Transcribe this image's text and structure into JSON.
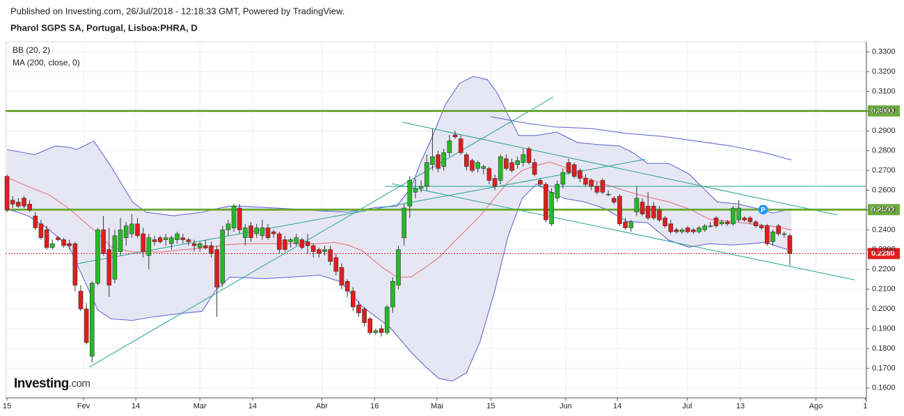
{
  "chart_data": {
    "type": "candlestick",
    "published": "Published on Investing.com, 26/Jul/2018 - 12:18:33 GMT, Powered by TradingView.",
    "title": "Pharol SGPS SA, Portugal, Lisboa:PHRA, D",
    "logo": {
      "name": "Investing",
      "suffix": ".com"
    },
    "ylim": [
      0.155,
      0.3351
    ],
    "yticks": [
      {
        "value": 0.16,
        "label": "0.1600"
      },
      {
        "value": 0.17,
        "label": "0.1700"
      },
      {
        "value": 0.18,
        "label": "0.1800"
      },
      {
        "value": 0.19,
        "label": "0.1900"
      },
      {
        "value": 0.2,
        "label": "0.2000"
      },
      {
        "value": 0.21,
        "label": "0.2100"
      },
      {
        "value": 0.22,
        "label": "0.2200"
      },
      {
        "value": 0.23,
        "label": "0.2300"
      },
      {
        "value": 0.24,
        "label": "0.2400"
      },
      {
        "value": 0.25,
        "label": "0.2500"
      },
      {
        "value": 0.26,
        "label": "0.2600"
      },
      {
        "value": 0.27,
        "label": "0.2700"
      },
      {
        "value": 0.28,
        "label": "0.2800"
      },
      {
        "value": 0.29,
        "label": "0.2900"
      },
      {
        "value": 0.3,
        "label": "0.3000"
      },
      {
        "value": 0.31,
        "label": "0.3100"
      },
      {
        "value": 0.32,
        "label": "0.3200"
      },
      {
        "value": 0.33,
        "label": "0.3300"
      }
    ],
    "xlim": [
      -0.25,
      151.5
    ],
    "xticks": [
      {
        "value": 0,
        "label": "15"
      },
      {
        "value": 13.5,
        "label": "Fev"
      },
      {
        "value": 22.7,
        "label": "14"
      },
      {
        "value": 34,
        "label": "Mar"
      },
      {
        "value": 43.3,
        "label": "14"
      },
      {
        "value": 55.5,
        "label": "Abr"
      },
      {
        "value": 64.8,
        "label": "16"
      },
      {
        "value": 75.8,
        "label": "Mai"
      },
      {
        "value": 85.3,
        "label": "15"
      },
      {
        "value": 98.5,
        "label": "Jun"
      },
      {
        "value": 107.6,
        "label": "14"
      },
      {
        "value": 119.9,
        "label": "Jul"
      },
      {
        "value": 129.3,
        "label": "13"
      },
      {
        "value": 142.6,
        "label": "Ago"
      },
      {
        "value": 151.3,
        "label": "1"
      }
    ],
    "grid": true,
    "up_color": "#27b927",
    "down_color": "#e11d1d",
    "candles": [
      [
        0.267,
        0.268,
        0.249,
        0.25
      ],
      [
        0.255,
        0.257,
        0.251,
        0.253
      ],
      [
        0.254,
        0.256,
        0.251,
        0.252
      ],
      [
        0.256,
        0.257,
        0.251,
        0.252
      ],
      [
        0.253,
        0.255,
        0.249,
        0.25
      ],
      [
        0.247,
        0.249,
        0.24,
        0.241
      ],
      [
        0.243,
        0.245,
        0.235,
        0.236
      ],
      [
        0.24,
        0.242,
        0.23,
        0.231
      ],
      [
        0.231,
        0.235,
        0.23,
        0.233
      ],
      [
        0.236,
        0.237,
        0.234,
        0.235
      ],
      [
        0.235,
        0.236,
        0.231,
        0.232
      ],
      [
        0.233,
        0.235,
        0.23,
        0.232
      ],
      [
        0.233,
        0.234,
        0.209,
        0.212
      ],
      [
        0.209,
        0.212,
        0.199,
        0.2
      ],
      [
        0.2,
        0.203,
        0.182,
        0.183
      ],
      [
        0.176,
        0.214,
        0.173,
        0.213
      ],
      [
        0.213,
        0.241,
        0.212,
        0.24
      ],
      [
        0.24,
        0.247,
        0.227,
        0.228
      ],
      [
        0.23,
        0.241,
        0.206,
        0.212
      ],
      [
        0.215,
        0.24,
        0.213,
        0.237
      ],
      [
        0.229,
        0.246,
        0.227,
        0.24
      ],
      [
        0.236,
        0.244,
        0.232,
        0.242
      ],
      [
        0.238,
        0.248,
        0.236,
        0.243
      ],
      [
        0.243,
        0.246,
        0.236,
        0.237
      ],
      [
        0.238,
        0.241,
        0.226,
        0.229
      ],
      [
        0.227,
        0.238,
        0.22,
        0.236
      ],
      [
        0.235,
        0.237,
        0.232,
        0.234
      ],
      [
        0.236,
        0.237,
        0.233,
        0.234
      ],
      [
        0.235,
        0.238,
        0.232,
        0.236
      ],
      [
        0.233,
        0.237,
        0.23,
        0.236
      ],
      [
        0.235,
        0.239,
        0.233,
        0.238
      ],
      [
        0.236,
        0.238,
        0.233,
        0.235
      ],
      [
        0.235,
        0.236,
        0.232,
        0.234
      ],
      [
        0.233,
        0.235,
        0.229,
        0.232
      ],
      [
        0.231,
        0.234,
        0.229,
        0.233
      ],
      [
        0.232,
        0.235,
        0.23,
        0.231
      ],
      [
        0.232,
        0.234,
        0.226,
        0.228
      ],
      [
        0.23,
        0.232,
        0.196,
        0.211
      ],
      [
        0.213,
        0.242,
        0.211,
        0.24
      ],
      [
        0.24,
        0.245,
        0.237,
        0.243
      ],
      [
        0.241,
        0.253,
        0.239,
        0.252
      ],
      [
        0.251,
        0.253,
        0.238,
        0.24
      ],
      [
        0.236,
        0.243,
        0.232,
        0.241
      ],
      [
        0.242,
        0.244,
        0.234,
        0.236
      ],
      [
        0.238,
        0.243,
        0.236,
        0.241
      ],
      [
        0.237,
        0.245,
        0.235,
        0.241
      ],
      [
        0.241,
        0.243,
        0.235,
        0.236
      ],
      [
        0.239,
        0.24,
        0.236,
        0.238
      ],
      [
        0.238,
        0.239,
        0.228,
        0.23
      ],
      [
        0.235,
        0.237,
        0.229,
        0.23
      ],
      [
        0.234,
        0.236,
        0.231,
        0.235
      ],
      [
        0.233,
        0.238,
        0.232,
        0.236
      ],
      [
        0.235,
        0.236,
        0.23,
        0.231
      ],
      [
        0.234,
        0.238,
        0.228,
        0.232
      ],
      [
        0.232,
        0.233,
        0.226,
        0.229
      ],
      [
        0.23,
        0.231,
        0.226,
        0.228
      ],
      [
        0.229,
        0.232,
        0.227,
        0.23
      ],
      [
        0.23,
        0.232,
        0.222,
        0.224
      ],
      [
        0.226,
        0.228,
        0.217,
        0.219
      ],
      [
        0.221,
        0.223,
        0.21,
        0.212
      ],
      [
        0.214,
        0.215,
        0.206,
        0.209
      ],
      [
        0.209,
        0.211,
        0.199,
        0.201
      ],
      [
        0.202,
        0.204,
        0.196,
        0.198
      ],
      [
        0.2,
        0.201,
        0.191,
        0.193
      ],
      [
        0.195,
        0.196,
        0.187,
        0.188
      ],
      [
        0.188,
        0.19,
        0.187,
        0.189
      ],
      [
        0.19,
        0.192,
        0.186,
        0.188
      ],
      [
        0.188,
        0.202,
        0.187,
        0.201
      ],
      [
        0.201,
        0.216,
        0.198,
        0.214
      ],
      [
        0.212,
        0.232,
        0.21,
        0.23
      ],
      [
        0.236,
        0.253,
        0.232,
        0.251
      ],
      [
        0.252,
        0.267,
        0.246,
        0.265
      ],
      [
        0.259,
        0.266,
        0.256,
        0.261
      ],
      [
        0.261,
        0.265,
        0.259,
        0.262
      ],
      [
        0.262,
        0.278,
        0.26,
        0.274
      ],
      [
        0.273,
        0.291,
        0.27,
        0.277
      ],
      [
        0.278,
        0.28,
        0.269,
        0.271
      ],
      [
        0.272,
        0.281,
        0.27,
        0.279
      ],
      [
        0.279,
        0.288,
        0.277,
        0.285
      ],
      [
        0.288,
        0.29,
        0.286,
        0.287
      ],
      [
        0.286,
        0.288,
        0.278,
        0.279
      ],
      [
        0.278,
        0.279,
        0.27,
        0.272
      ],
      [
        0.275,
        0.276,
        0.269,
        0.27
      ],
      [
        0.271,
        0.275,
        0.269,
        0.274
      ],
      [
        0.271,
        0.273,
        0.268,
        0.272
      ],
      [
        0.271,
        0.272,
        0.263,
        0.265
      ],
      [
        0.266,
        0.268,
        0.26,
        0.262
      ],
      [
        0.265,
        0.278,
        0.263,
        0.277
      ],
      [
        0.276,
        0.278,
        0.27,
        0.271
      ],
      [
        0.274,
        0.276,
        0.269,
        0.27
      ],
      [
        0.273,
        0.277,
        0.271,
        0.275
      ],
      [
        0.274,
        0.281,
        0.272,
        0.278
      ],
      [
        0.281,
        0.282,
        0.273,
        0.274
      ],
      [
        0.274,
        0.276,
        0.267,
        0.268
      ],
      [
        0.265,
        0.266,
        0.262,
        0.263
      ],
      [
        0.263,
        0.264,
        0.244,
        0.245
      ],
      [
        0.243,
        0.261,
        0.242,
        0.259
      ],
      [
        0.256,
        0.265,
        0.254,
        0.263
      ],
      [
        0.263,
        0.271,
        0.261,
        0.269
      ],
      [
        0.274,
        0.276,
        0.268,
        0.269
      ],
      [
        0.273,
        0.274,
        0.266,
        0.267
      ],
      [
        0.27,
        0.271,
        0.264,
        0.266
      ],
      [
        0.266,
        0.268,
        0.262,
        0.263
      ],
      [
        0.265,
        0.266,
        0.26,
        0.262
      ],
      [
        0.262,
        0.264,
        0.258,
        0.259
      ],
      [
        0.265,
        0.266,
        0.258,
        0.259
      ],
      [
        0.258,
        0.26,
        0.257,
        0.258
      ],
      [
        0.256,
        0.257,
        0.253,
        0.254
      ],
      [
        0.257,
        0.258,
        0.242,
        0.243
      ],
      [
        0.244,
        0.246,
        0.24,
        0.241
      ],
      [
        0.241,
        0.245,
        0.239,
        0.244
      ],
      [
        0.249,
        0.262,
        0.247,
        0.256
      ],
      [
        0.254,
        0.256,
        0.247,
        0.248
      ],
      [
        0.252,
        0.259,
        0.245,
        0.246
      ],
      [
        0.252,
        0.254,
        0.245,
        0.246
      ],
      [
        0.25,
        0.252,
        0.244,
        0.245
      ],
      [
        0.246,
        0.247,
        0.241,
        0.242
      ],
      [
        0.243,
        0.245,
        0.238,
        0.239
      ],
      [
        0.24,
        0.241,
        0.238,
        0.239
      ],
      [
        0.239,
        0.241,
        0.238,
        0.24
      ],
      [
        0.241,
        0.242,
        0.238,
        0.239
      ],
      [
        0.24,
        0.241,
        0.238,
        0.239
      ],
      [
        0.239,
        0.242,
        0.238,
        0.241
      ],
      [
        0.24,
        0.243,
        0.239,
        0.242
      ],
      [
        0.242,
        0.244,
        0.241,
        0.242
      ],
      [
        0.246,
        0.247,
        0.241,
        0.242
      ],
      [
        0.243,
        0.245,
        0.242,
        0.244
      ],
      [
        0.244,
        0.245,
        0.242,
        0.243
      ],
      [
        0.243,
        0.252,
        0.242,
        0.251
      ],
      [
        0.245,
        0.255,
        0.244,
        0.251
      ],
      [
        0.246,
        0.247,
        0.244,
        0.245
      ],
      [
        0.246,
        0.247,
        0.243,
        0.244
      ],
      [
        0.244,
        0.245,
        0.241,
        0.242
      ],
      [
        0.242,
        0.243,
        0.24,
        0.241
      ],
      [
        0.242,
        0.243,
        0.232,
        0.233
      ],
      [
        0.234,
        0.24,
        0.232,
        0.239
      ],
      [
        0.242,
        0.243,
        0.237,
        0.238
      ],
      [
        0.238,
        0.239,
        0.236,
        0.238
      ],
      [
        0.237,
        0.238,
        0.222,
        0.228
      ]
    ],
    "bollinger": {
      "name": "BB (20, 2)",
      "line_color": "#5a5ad8",
      "fill_color": "#e3e3f2",
      "basis_color": "#e36a6a",
      "upper": {
        "x": [
          0,
          4.9,
          8.6,
          11,
          12.3,
          15.3,
          18.4,
          22.1,
          24.5,
          29.4,
          34.4,
          36.8,
          39.3,
          41.1,
          45.4,
          50.3,
          55.2,
          60.1,
          65,
          68.7,
          71.2,
          73,
          74.8,
          77.3,
          79.8,
          82.2,
          84.7,
          86.5,
          88.3,
          90.2,
          93.3,
          96.9,
          100.6,
          104.3,
          108,
          110.4,
          112.9,
          116.6,
          120.2,
          122.7,
          125.2,
          128.8,
          132.5,
          135,
          138.3
        ],
        "values": [
          0.2806,
          0.278,
          0.2824,
          0.2817,
          0.2806,
          0.2849,
          0.2718,
          0.2542,
          0.2489,
          0.2471,
          0.2489,
          0.2506,
          0.252,
          0.252,
          0.2513,
          0.2506,
          0.2496,
          0.2489,
          0.2513,
          0.252,
          0.2612,
          0.2746,
          0.2859,
          0.3035,
          0.3141,
          0.3176,
          0.3159,
          0.3088,
          0.2982,
          0.2877,
          0.2877,
          0.2894,
          0.2841,
          0.2831,
          0.2824,
          0.2789,
          0.2736,
          0.2736,
          0.2683,
          0.2612,
          0.2541,
          0.2531,
          0.2506,
          0.2485,
          0.2506
        ]
      },
      "lower": {
        "x": [
          0,
          3.7,
          7.4,
          11,
          13.5,
          16,
          18.4,
          22.1,
          25.8,
          30.7,
          34.4,
          36.8,
          39.3,
          45.4,
          50.3,
          55.2,
          58.9,
          62.6,
          67.5,
          71.2,
          73.6,
          76.1,
          78.5,
          81,
          83.4,
          85.9,
          88.3,
          90.8,
          93.3,
          95.7,
          98.2,
          101.8,
          105.5,
          109.2,
          112.9,
          116.6,
          120.2,
          123.9,
          127.6,
          131.3,
          133.7,
          136.2,
          138.3
        ],
        "values": [
          0.2506,
          0.2471,
          0.2401,
          0.2312,
          0.2153,
          0.1995,
          0.1949,
          0.1942,
          0.196,
          0.1977,
          0.1988,
          0.2094,
          0.2161,
          0.2153,
          0.2161,
          0.2171,
          0.2136,
          0.2012,
          0.1907,
          0.1783,
          0.1713,
          0.1649,
          0.1635,
          0.1677,
          0.1836,
          0.2083,
          0.2365,
          0.2559,
          0.263,
          0.2594,
          0.2559,
          0.2541,
          0.2506,
          0.2443,
          0.2436,
          0.2348,
          0.2312,
          0.233,
          0.2323,
          0.233,
          0.2337,
          0.2312,
          0.2295
        ]
      },
      "basis": {
        "x": [
          0,
          3.7,
          7.4,
          11,
          13.5,
          16,
          18.4,
          22.1,
          27,
          31.9,
          35.6,
          38,
          41.7,
          45.4,
          50.3,
          55.2,
          57.7,
          60.1,
          62.6,
          66.3,
          68.7,
          71.2,
          73.6,
          76.1,
          78.5,
          81,
          83.4,
          85.9,
          88.3,
          90.8,
          93.3,
          95.7,
          98.2,
          101.8,
          105.5,
          109.2,
          112.9,
          116.6,
          120.2,
          123.9,
          127.6,
          131.3,
          135,
          138.3
        ],
        "values": [
          0.2665,
          0.2619,
          0.2577,
          0.2506,
          0.2443,
          0.2383,
          0.2312,
          0.2288,
          0.2288,
          0.2302,
          0.2309,
          0.2323,
          0.233,
          0.233,
          0.233,
          0.233,
          0.2337,
          0.2323,
          0.2295,
          0.2207,
          0.2161,
          0.2161,
          0.2207,
          0.2259,
          0.233,
          0.2401,
          0.2471,
          0.2559,
          0.264,
          0.27,
          0.2725,
          0.2743,
          0.2718,
          0.2665,
          0.263,
          0.2595,
          0.2566,
          0.2542,
          0.2506,
          0.2453,
          0.2443,
          0.2429,
          0.2418,
          0.24
        ]
      }
    },
    "ma": {
      "name": "MA (200, close, 0)",
      "color": "#5a5ad8",
      "x": [
        85.3,
        92,
        96.9,
        103.1,
        109.2,
        115.3,
        121.5,
        127.6,
        133.7,
        138.3
      ],
      "values": [
        0.2972,
        0.2937,
        0.2919,
        0.2912,
        0.2887,
        0.2873,
        0.2849,
        0.2824,
        0.2789,
        0.2753
      ]
    },
    "trendlines": [
      {
        "color": "#1fa38a",
        "x": [
          14.5,
          96.3
        ],
        "values": [
          0.1706,
          0.3071
        ]
      },
      {
        "color": "#1fa38a",
        "x": [
          11.5,
          112.6
        ],
        "values": [
          0.2224,
          0.2757
        ]
      },
      {
        "color": "#1fa38a",
        "x": [
          69.7,
          146.4
        ],
        "values": [
          0.2944,
          0.2475
        ]
      },
      {
        "color": "#1fa38a",
        "x": [
          67.9,
          149.4
        ],
        "values": [
          0.2633,
          0.2147
        ]
      },
      {
        "color": "#1fa38a",
        "x": [
          66.6,
          151.5
        ],
        "values": [
          0.262,
          0.262
        ]
      }
    ],
    "hlines": [
      {
        "value": 0.3001,
        "color": "#6aaa3a"
      },
      {
        "value": 0.2502,
        "color": "#6aaa3a"
      },
      {
        "value": 0.228,
        "label": "0.2280",
        "color": "#e11d1d",
        "dash": true
      }
    ],
    "marker": {
      "label": "P",
      "x": 133.3,
      "value": 0.2502,
      "color": "#2196f3"
    }
  }
}
